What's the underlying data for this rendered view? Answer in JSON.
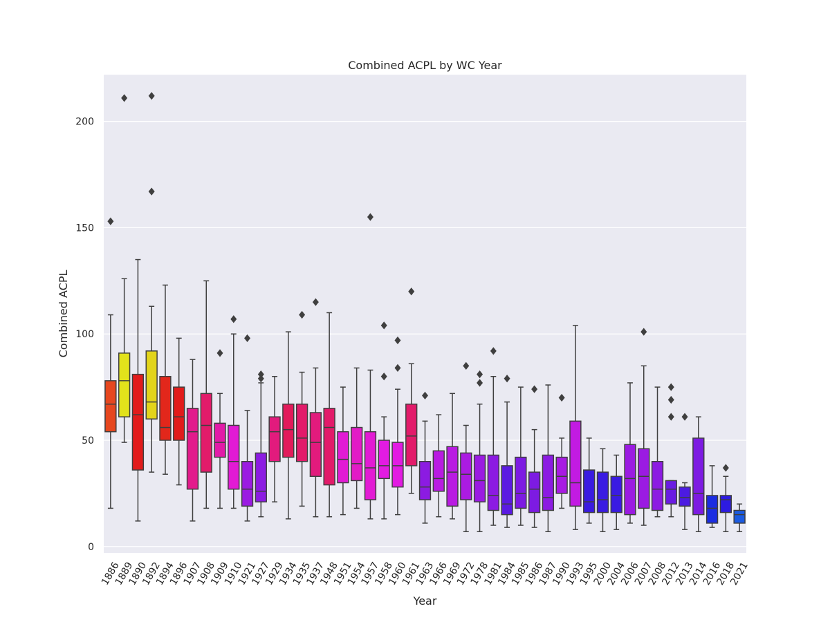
{
  "chart_data": {
    "type": "box",
    "title": "Combined ACPL by WC Year",
    "xlabel": "Year",
    "ylabel": "Combined ACPL",
    "ylim": [
      -3,
      222
    ],
    "yticks": [
      0,
      50,
      100,
      150,
      200
    ],
    "grid": true,
    "boxes": [
      {
        "year": "1886",
        "color": "#e6471f",
        "whislo": 18,
        "q1": 54,
        "med": 67,
        "q3": 78,
        "whishi": 109,
        "outliers": [
          153
        ]
      },
      {
        "year": "1889",
        "color": "#e2e21b",
        "whislo": 49,
        "q1": 61,
        "med": 78,
        "q3": 91,
        "whishi": 126,
        "outliers": [
          211
        ]
      },
      {
        "year": "1890",
        "color": "#e21b1b",
        "whislo": 12,
        "q1": 36,
        "med": 62,
        "q3": 81,
        "whishi": 135,
        "outliers": []
      },
      {
        "year": "1892",
        "color": "#e2d41b",
        "whislo": 35,
        "q1": 60,
        "med": 68,
        "q3": 92,
        "whishi": 113,
        "outliers": [
          167,
          212
        ]
      },
      {
        "year": "1894",
        "color": "#e2271b",
        "whislo": 34,
        "q1": 50,
        "med": 56,
        "q3": 80,
        "whishi": 123,
        "outliers": []
      },
      {
        "year": "1896",
        "color": "#e21b1b",
        "whislo": 29,
        "q1": 50,
        "med": 61,
        "q3": 75,
        "whishi": 98,
        "outliers": []
      },
      {
        "year": "1907",
        "color": "#e21b8c",
        "whislo": 12,
        "q1": 27,
        "med": 54,
        "q3": 65,
        "whishi": 88,
        "outliers": []
      },
      {
        "year": "1908",
        "color": "#e21b6a",
        "whislo": 18,
        "q1": 35,
        "med": 57,
        "q3": 72,
        "whishi": 125,
        "outliers": []
      },
      {
        "year": "1909",
        "color": "#e21ba8",
        "whislo": 18,
        "q1": 42,
        "med": 49,
        "q3": 58,
        "whishi": 72,
        "outliers": [
          91
        ]
      },
      {
        "year": "1910",
        "color": "#e21bd4",
        "whislo": 18,
        "q1": 27,
        "med": 40,
        "q3": 57,
        "whishi": 100,
        "outliers": [
          107
        ]
      },
      {
        "year": "1921",
        "color": "#9b1be2",
        "whislo": 12,
        "q1": 19,
        "med": 27,
        "q3": 40,
        "whishi": 64,
        "outliers": [
          98
        ]
      },
      {
        "year": "1927",
        "color": "#8c1be2",
        "whislo": 14,
        "q1": 21,
        "med": 26,
        "q3": 44,
        "whishi": 77,
        "outliers": [
          79,
          81
        ]
      },
      {
        "year": "1929",
        "color": "#e21b7d",
        "whislo": 21,
        "q1": 40,
        "med": 54,
        "q3": 61,
        "whishi": 80,
        "outliers": []
      },
      {
        "year": "1934",
        "color": "#e21b5b",
        "whislo": 13,
        "q1": 42,
        "med": 55,
        "q3": 67,
        "whishi": 101,
        "outliers": []
      },
      {
        "year": "1935",
        "color": "#e21b6a",
        "whislo": 19,
        "q1": 40,
        "med": 51,
        "q3": 67,
        "whishi": 82,
        "outliers": [
          109
        ]
      },
      {
        "year": "1937",
        "color": "#e21b7d",
        "whislo": 14,
        "q1": 33,
        "med": 49,
        "q3": 63,
        "whishi": 84,
        "outliers": [
          115
        ]
      },
      {
        "year": "1948",
        "color": "#e21b6a",
        "whislo": 14,
        "q1": 29,
        "med": 56,
        "q3": 65,
        "whishi": 110,
        "outliers": []
      },
      {
        "year": "1951",
        "color": "#e21bd4",
        "whislo": 15,
        "q1": 30,
        "med": 41,
        "q3": 54,
        "whishi": 75,
        "outliers": []
      },
      {
        "year": "1954",
        "color": "#e21bc6",
        "whislo": 18,
        "q1": 31,
        "med": 39,
        "q3": 56,
        "whishi": 84,
        "outliers": []
      },
      {
        "year": "1957",
        "color": "#e21bd4",
        "whislo": 13,
        "q1": 22,
        "med": 37,
        "q3": 54,
        "whishi": 83,
        "outliers": [
          155
        ]
      },
      {
        "year": "1958",
        "color": "#e21be2",
        "whislo": 13,
        "q1": 32,
        "med": 38,
        "q3": 50,
        "whishi": 61,
        "outliers": [
          80,
          104
        ]
      },
      {
        "year": "1960",
        "color": "#e21be2",
        "whislo": 15,
        "q1": 28,
        "med": 38,
        "q3": 49,
        "whishi": 74,
        "outliers": [
          84,
          97
        ]
      },
      {
        "year": "1961",
        "color": "#e21b6a",
        "whislo": 25,
        "q1": 38,
        "med": 52,
        "q3": 67,
        "whishi": 86,
        "outliers": [
          120
        ]
      },
      {
        "year": "1963",
        "color": "#8c1be2",
        "whislo": 11,
        "q1": 22,
        "med": 28,
        "q3": 40,
        "whishi": 59,
        "outliers": [
          71
        ]
      },
      {
        "year": "1966",
        "color": "#b91be2",
        "whislo": 14,
        "q1": 26,
        "med": 32,
        "q3": 45,
        "whishi": 62,
        "outliers": []
      },
      {
        "year": "1969",
        "color": "#b91be2",
        "whislo": 13,
        "q1": 19,
        "med": 35,
        "q3": 47,
        "whishi": 72,
        "outliers": []
      },
      {
        "year": "1972",
        "color": "#ab1be2",
        "whislo": 7,
        "q1": 22,
        "med": 34,
        "q3": 44,
        "whishi": 57,
        "outliers": [
          85
        ]
      },
      {
        "year": "1978",
        "color": "#9b1be2",
        "whislo": 7,
        "q1": 21,
        "med": 31,
        "q3": 43,
        "whishi": 67,
        "outliers": [
          77,
          81
        ]
      },
      {
        "year": "1981",
        "color": "#8c1be2",
        "whislo": 10,
        "q1": 17,
        "med": 24,
        "q3": 43,
        "whishi": 80,
        "outliers": [
          92
        ]
      },
      {
        "year": "1984",
        "color": "#5b1be2",
        "whislo": 9,
        "q1": 15,
        "med": 20,
        "q3": 38,
        "whishi": 68,
        "outliers": [
          79
        ]
      },
      {
        "year": "1985",
        "color": "#7d1be2",
        "whislo": 10,
        "q1": 18,
        "med": 25,
        "q3": 42,
        "whishi": 75,
        "outliers": []
      },
      {
        "year": "1986",
        "color": "#7d1be2",
        "whislo": 9,
        "q1": 16,
        "med": 27,
        "q3": 35,
        "whishi": 55,
        "outliers": [
          74
        ]
      },
      {
        "year": "1987",
        "color": "#8c1be2",
        "whislo": 7,
        "q1": 17,
        "med": 23,
        "q3": 43,
        "whishi": 76,
        "outliers": []
      },
      {
        "year": "1990",
        "color": "#a81be2",
        "whislo": 18,
        "q1": 25,
        "med": 33,
        "q3": 42,
        "whishi": 51,
        "outliers": [
          70
        ]
      },
      {
        "year": "1993",
        "color": "#c21be2",
        "whislo": 8,
        "q1": 19,
        "med": 30,
        "q3": 59,
        "whishi": 104,
        "outliers": []
      },
      {
        "year": "1995",
        "color": "#3a1be2",
        "whislo": 11,
        "q1": 16,
        "med": 21,
        "q3": 36,
        "whishi": 51,
        "outliers": []
      },
      {
        "year": "2000",
        "color": "#3a1be2",
        "whislo": 7,
        "q1": 16,
        "med": 22,
        "q3": 35,
        "whishi": 46,
        "outliers": []
      },
      {
        "year": "2004",
        "color": "#3a1be2",
        "whislo": 8,
        "q1": 16,
        "med": 24,
        "q3": 33,
        "whishi": 43,
        "outliers": []
      },
      {
        "year": "2006",
        "color": "#9b1be2",
        "whislo": 11,
        "q1": 15,
        "med": 32,
        "q3": 48,
        "whishi": 77,
        "outliers": []
      },
      {
        "year": "2007",
        "color": "#9b1be2",
        "whislo": 10,
        "q1": 18,
        "med": 33,
        "q3": 46,
        "whishi": 85,
        "outliers": [
          101
        ]
      },
      {
        "year": "2008",
        "color": "#8c1be2",
        "whislo": 14,
        "q1": 17,
        "med": 27,
        "q3": 40,
        "whishi": 75,
        "outliers": []
      },
      {
        "year": "2012",
        "color": "#6a1be2",
        "whislo": 14,
        "q1": 20,
        "med": 27,
        "q3": 31,
        "whishi": 31,
        "outliers": [
          61,
          69,
          75
        ]
      },
      {
        "year": "2013",
        "color": "#4c1be2",
        "whislo": 8,
        "q1": 19,
        "med": 23,
        "q3": 28,
        "whishi": 30,
        "outliers": [
          61
        ]
      },
      {
        "year": "2014",
        "color": "#7d1be2",
        "whislo": 7,
        "q1": 15,
        "med": 25,
        "q3": 51,
        "whishi": 61,
        "outliers": []
      },
      {
        "year": "2016",
        "color": "#1b2de2",
        "whislo": 9,
        "q1": 11,
        "med": 18,
        "q3": 24,
        "whishi": 38,
        "outliers": []
      },
      {
        "year": "2018",
        "color": "#2d1be2",
        "whislo": 7,
        "q1": 16,
        "med": 22,
        "q3": 24,
        "whishi": 33,
        "outliers": [
          37
        ]
      },
      {
        "year": "2021",
        "color": "#1b5be2",
        "whislo": 7,
        "q1": 11,
        "med": 15,
        "q3": 17,
        "whishi": 20,
        "outliers": []
      }
    ]
  }
}
